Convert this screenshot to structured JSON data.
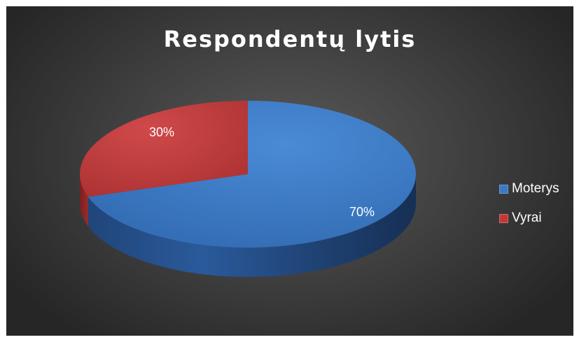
{
  "chart_data": {
    "type": "pie",
    "title": "Respondentų lytis",
    "slices": [
      {
        "label": "Moterys",
        "value": 70,
        "value_label": "70%",
        "color": "#3a78c4"
      },
      {
        "label": "Vyrai",
        "value": 30,
        "value_label": "30%",
        "color": "#c0393a"
      }
    ],
    "legend_position": "right",
    "style": "3d"
  }
}
